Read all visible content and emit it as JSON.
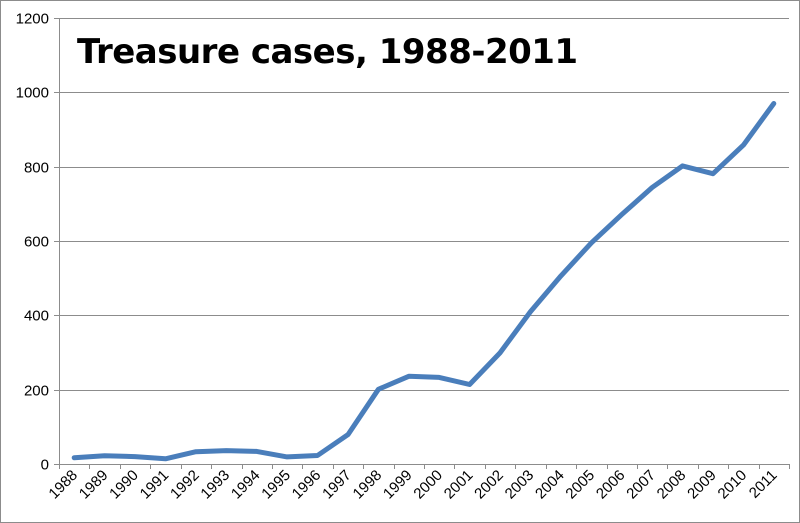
{
  "chart_data": {
    "type": "line",
    "title": "Treasure cases, 1988-2011",
    "xlabel": "",
    "ylabel": "",
    "categories": [
      "1988",
      "1989",
      "1990",
      "1991",
      "1992",
      "1993",
      "1994",
      "1995",
      "1996",
      "1997",
      "1998",
      "1999",
      "2000",
      "2001",
      "2002",
      "2003",
      "2004",
      "2005",
      "2006",
      "2007",
      "2008",
      "2009",
      "2010",
      "2011"
    ],
    "series": [
      {
        "values": [
          17,
          22,
          20,
          14,
          33,
          36,
          34,
          19,
          23,
          79,
          201,
          236,
          233,
          214,
          299,
          410,
          506,
          595,
          671,
          744,
          802,
          781,
          858,
          970
        ],
        "color": "#4a7ebb"
      }
    ],
    "ylim": [
      0,
      1200
    ],
    "yticks": [
      "0",
      "200",
      "400",
      "600",
      "800",
      "1000",
      "1200"
    ],
    "grid": true,
    "legend": "none"
  }
}
